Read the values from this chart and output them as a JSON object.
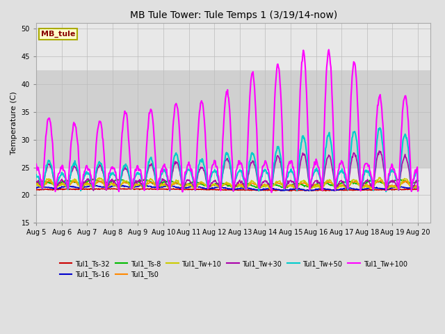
{
  "title": "MB Tule Tower: Tule Temps 1 (3/19/14-now)",
  "ylabel": "Temperature (C)",
  "xlabel": "",
  "ylim": [
    15,
    51
  ],
  "yticks": [
    15,
    20,
    25,
    30,
    35,
    40,
    45,
    50
  ],
  "xtick_labels": [
    "Aug 5",
    "Aug 6",
    "Aug 7",
    "Aug 8",
    "Aug 9",
    "Aug 10",
    "Aug 11",
    "Aug 12",
    "Aug 13",
    "Aug 14",
    "Aug 15",
    "Aug 16",
    "Aug 17",
    "Aug 18",
    "Aug 19",
    "Aug 20"
  ],
  "fig_bg_color": "#e0e0e0",
  "plot_bg_color": "#e8e8e8",
  "shaded_band": [
    25,
    42.5
  ],
  "shaded_band_color": "#d0d0d0",
  "legend_label": "MB_tule",
  "legend_bg": "#ffffcc",
  "legend_border": "#aaaa00",
  "legend_text_color": "#880000",
  "series": [
    {
      "name": "Tul1_Ts-32",
      "color": "#cc0000",
      "lw": 1.2
    },
    {
      "name": "Tul1_Ts-16",
      "color": "#0000cc",
      "lw": 1.2
    },
    {
      "name": "Tul1_Ts-8",
      "color": "#00bb00",
      "lw": 1.2
    },
    {
      "name": "Tul1_Ts0",
      "color": "#ff8800",
      "lw": 1.2
    },
    {
      "name": "Tul1_Tw+10",
      "color": "#cccc00",
      "lw": 1.2
    },
    {
      "name": "Tul1_Tw+30",
      "color": "#aa00aa",
      "lw": 1.2
    },
    {
      "name": "Tul1_Tw+50",
      "color": "#00cccc",
      "lw": 1.5
    },
    {
      "name": "Tul1_Tw+100",
      "color": "#ff00ff",
      "lw": 1.5
    }
  ],
  "legend_order": [
    "Tul1_Ts-32",
    "Tul1_Ts-16",
    "Tul1_Ts-8",
    "Tul1_Ts0",
    "Tul1_Tw+10",
    "Tul1_Tw+30",
    "Tul1_Tw+50",
    "Tul1_Tw+100"
  ]
}
